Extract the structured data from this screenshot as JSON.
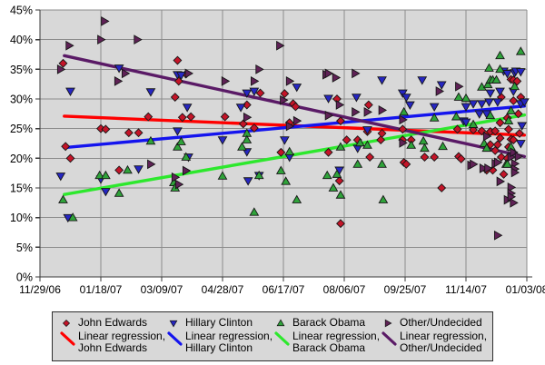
{
  "chart_data": {
    "type": "scatter",
    "title": "",
    "x_axis": {
      "tick_labels": [
        "11/29/06",
        "01/18/07",
        "03/09/07",
        "04/28/07",
        "06/17/07",
        "08/06/07",
        "09/25/07",
        "11/14/07",
        "01/03/08"
      ],
      "min_day": 0,
      "max_day": 400,
      "tick_step_days": 50
    },
    "y_axis": {
      "tick_labels": [
        "0%",
        "5%",
        "10%",
        "15%",
        "20%",
        "25%",
        "30%",
        "35%",
        "40%",
        "45%"
      ],
      "min": 0,
      "max": 45,
      "step": 5,
      "unit": "%"
    },
    "plot_bg": "#d8d8d8",
    "grid_color": "#8c8c8c",
    "axis_color": "#3a3a3a",
    "series": [
      {
        "name": "John Edwards",
        "marker": "diamond",
        "marker_color": "#c41428",
        "points": [
          [
            19,
            36
          ],
          [
            21,
            22
          ],
          [
            25,
            20
          ],
          [
            50,
            25
          ],
          [
            54,
            24.9
          ],
          [
            65,
            18
          ],
          [
            73,
            24.3
          ],
          [
            81,
            24.3
          ],
          [
            89,
            27
          ],
          [
            111,
            30.3
          ],
          [
            113,
            36.5
          ],
          [
            114,
            33
          ],
          [
            117,
            26.9
          ],
          [
            120,
            34.2
          ],
          [
            124,
            27
          ],
          [
            152,
            27
          ],
          [
            167,
            25.8
          ],
          [
            170,
            29
          ],
          [
            176,
            25.1
          ],
          [
            181,
            31
          ],
          [
            198,
            21
          ],
          [
            201,
            30.9
          ],
          [
            205,
            26
          ],
          [
            208,
            29.2
          ],
          [
            210,
            28.7
          ],
          [
            237,
            21
          ],
          [
            244,
            30
          ],
          [
            246,
            16.2
          ],
          [
            247,
            26.3
          ],
          [
            247,
            9
          ],
          [
            252,
            23.1
          ],
          [
            261,
            23.1
          ],
          [
            269,
            24.5
          ],
          [
            270,
            29
          ],
          [
            271,
            20.2
          ],
          [
            280,
            23.1
          ],
          [
            281,
            24.2
          ],
          [
            298,
            24.9
          ],
          [
            298,
            23.1
          ],
          [
            299,
            19.3
          ],
          [
            301,
            19
          ],
          [
            305,
            23.1
          ],
          [
            316,
            20.2
          ],
          [
            324,
            20.2
          ],
          [
            330,
            15
          ],
          [
            343,
            24.9
          ],
          [
            344,
            20.3
          ],
          [
            346,
            19.9
          ],
          [
            356,
            24.8
          ],
          [
            363,
            24.6
          ],
          [
            367,
            18
          ],
          [
            370,
            24.5
          ],
          [
            370,
            22.3
          ],
          [
            372,
            18
          ],
          [
            374,
            24.6
          ],
          [
            374,
            21.3
          ],
          [
            376,
            22.3
          ],
          [
            378,
            26
          ],
          [
            378,
            23.4
          ],
          [
            379,
            20.2
          ],
          [
            379,
            30.3
          ],
          [
            381,
            17.3
          ],
          [
            384,
            20
          ],
          [
            384,
            26.8
          ],
          [
            385,
            24.9
          ],
          [
            385,
            21.9
          ],
          [
            387,
            23.2
          ],
          [
            387,
            33.3
          ],
          [
            389,
            33.2
          ],
          [
            389,
            29.7
          ],
          [
            389,
            23.1
          ],
          [
            392,
            33
          ],
          [
            393,
            27.5
          ],
          [
            394,
            24.2
          ],
          [
            395,
            30.3
          ]
        ]
      },
      {
        "name": "Hillary Clinton",
        "marker": "triangle-down",
        "marker_color": "#2626c2",
        "points": [
          [
            17,
            17
          ],
          [
            23,
            10
          ],
          [
            25,
            31.3
          ],
          [
            50,
            16.5
          ],
          [
            54,
            14.4
          ],
          [
            65,
            35.2
          ],
          [
            81,
            18.2
          ],
          [
            91,
            31.2
          ],
          [
            113,
            34.1
          ],
          [
            116,
            34
          ],
          [
            113,
            24.6
          ],
          [
            121,
            28.6
          ],
          [
            122,
            20.2
          ],
          [
            150,
            23.1
          ],
          [
            165,
            28.6
          ],
          [
            170,
            31
          ],
          [
            170,
            21.1
          ],
          [
            171,
            16.2
          ],
          [
            176,
            31.3
          ],
          [
            180,
            17.1
          ],
          [
            201,
            23.1
          ],
          [
            205,
            20.2
          ],
          [
            211,
            32
          ],
          [
            237,
            30.1
          ],
          [
            246,
            18
          ],
          [
            260,
            30.3
          ],
          [
            261,
            21.7
          ],
          [
            269,
            24.8
          ],
          [
            281,
            33.2
          ],
          [
            298,
            31
          ],
          [
            301,
            30.3
          ],
          [
            304,
            29
          ],
          [
            314,
            33.2
          ],
          [
            324,
            28.7
          ],
          [
            330,
            32.4
          ],
          [
            348,
            26.3
          ],
          [
            350,
            28.7
          ],
          [
            350,
            26.1
          ],
          [
            356,
            29.2
          ],
          [
            361,
            27.5
          ],
          [
            363,
            29.2
          ],
          [
            367,
            27.5
          ],
          [
            369,
            29.5
          ],
          [
            370,
            31
          ],
          [
            376,
            29.5
          ],
          [
            378,
            31.3
          ],
          [
            381,
            34.7
          ],
          [
            384,
            34.3
          ],
          [
            389,
            31.3
          ],
          [
            390,
            34.4
          ],
          [
            391,
            34.7
          ],
          [
            395,
            34.6
          ],
          [
            395,
            29.2
          ],
          [
            395,
            22.5
          ],
          [
            396,
            25.5
          ],
          [
            398,
            29.5
          ]
        ]
      },
      {
        "name": "Barack Obama",
        "marker": "triangle-up",
        "marker_color": "#2fa33a",
        "points": [
          [
            19,
            13
          ],
          [
            27,
            10
          ],
          [
            49,
            17.1
          ],
          [
            54,
            17.1
          ],
          [
            65,
            14.1
          ],
          [
            72,
            18
          ],
          [
            91,
            22.9
          ],
          [
            110,
            15.9
          ],
          [
            111,
            15
          ],
          [
            113,
            21.9
          ],
          [
            116,
            22.8
          ],
          [
            120,
            20.2
          ],
          [
            150,
            17
          ],
          [
            166,
            21.9
          ],
          [
            170,
            24.2
          ],
          [
            170,
            23.1
          ],
          [
            176,
            10.9
          ],
          [
            180,
            17.1
          ],
          [
            198,
            17.9
          ],
          [
            202,
            16.1
          ],
          [
            205,
            21.1
          ],
          [
            211,
            13
          ],
          [
            236,
            17.1
          ],
          [
            241,
            15
          ],
          [
            244,
            17.3
          ],
          [
            247,
            21.9
          ],
          [
            247,
            13.8
          ],
          [
            261,
            19
          ],
          [
            263,
            22.6
          ],
          [
            269,
            22.2
          ],
          [
            281,
            19
          ],
          [
            282,
            13
          ],
          [
            299,
            27.8
          ],
          [
            305,
            22.2
          ],
          [
            315,
            22.9
          ],
          [
            316,
            21.7
          ],
          [
            324,
            26.8
          ],
          [
            331,
            22
          ],
          [
            342,
            27
          ],
          [
            344,
            30.3
          ],
          [
            350,
            30.1
          ],
          [
            356,
            25.7
          ],
          [
            363,
            32
          ],
          [
            365,
            22.5
          ],
          [
            367,
            21.7
          ],
          [
            368,
            32.4
          ],
          [
            369,
            35.2
          ],
          [
            370,
            33.2
          ],
          [
            370,
            27.2
          ],
          [
            372,
            33.2
          ],
          [
            375,
            33.2
          ],
          [
            378,
            37.3
          ],
          [
            378,
            35
          ],
          [
            383,
            19
          ],
          [
            384,
            19
          ],
          [
            385,
            26.3
          ],
          [
            387,
            28
          ],
          [
            387,
            21.9
          ],
          [
            390,
            32.1
          ],
          [
            395,
            38
          ]
        ]
      },
      {
        "name": "Other/Undecided",
        "marker": "triangle-right",
        "marker_color": "#5f2156",
        "points": [
          [
            17,
            35
          ],
          [
            24,
            39
          ],
          [
            50,
            40
          ],
          [
            53,
            43.1
          ],
          [
            64,
            33
          ],
          [
            70,
            34.3
          ],
          [
            80,
            40
          ],
          [
            91,
            19
          ],
          [
            111,
            16.8
          ],
          [
            114,
            15.6
          ],
          [
            120,
            17.9
          ],
          [
            122,
            34.3
          ],
          [
            152,
            33
          ],
          [
            170,
            26.9
          ],
          [
            176,
            33
          ],
          [
            180,
            35
          ],
          [
            197,
            39
          ],
          [
            200,
            29.8
          ],
          [
            205,
            33
          ],
          [
            205,
            25.4
          ],
          [
            211,
            26.3
          ],
          [
            235,
            34.1
          ],
          [
            237,
            34.3
          ],
          [
            237,
            27.2
          ],
          [
            243,
            33.6
          ],
          [
            246,
            29
          ],
          [
            259,
            34.3
          ],
          [
            259,
            27.8
          ],
          [
            269,
            27.8
          ],
          [
            281,
            28.1
          ],
          [
            298,
            26.5
          ],
          [
            298,
            22.6
          ],
          [
            328,
            31.3
          ],
          [
            344,
            32.1
          ],
          [
            354,
            18.8
          ],
          [
            356,
            19
          ],
          [
            364,
            18.3
          ],
          [
            367,
            23.7
          ],
          [
            368,
            18.3
          ],
          [
            374,
            19.1
          ],
          [
            376,
            19.3
          ],
          [
            376,
            7
          ],
          [
            378,
            16.1
          ],
          [
            384,
            13
          ],
          [
            387,
            20.2
          ],
          [
            387,
            15.1
          ],
          [
            387,
            14.1
          ],
          [
            387,
            13.5
          ],
          [
            389,
            21
          ],
          [
            389,
            12.5
          ],
          [
            390,
            19.1
          ],
          [
            390,
            18.2
          ],
          [
            390,
            17.6
          ],
          [
            393,
            20.3
          ]
        ]
      }
    ],
    "regressions": [
      {
        "name": "Linear regression, John Edwards",
        "color": "#ff0000",
        "start": [
          20,
          27.1
        ],
        "end": [
          398,
          23.9
        ]
      },
      {
        "name": "Linear regression, Hillary Clinton",
        "color": "#1414ee",
        "start": [
          20,
          21.8
        ],
        "end": [
          398,
          28.8
        ]
      },
      {
        "name": "Linear regression, Barack Obama",
        "color": "#2de82d",
        "start": [
          20,
          13.9
        ],
        "end": [
          398,
          27.3
        ]
      },
      {
        "name": "Linear regression, Other/Undecided",
        "color": "#5a1a66",
        "start": [
          20,
          37.3
        ],
        "end": [
          398,
          20.3
        ]
      }
    ]
  },
  "legend": {
    "columns": [
      {
        "label": "John Edwards",
        "reg_label_line1": "Linear regression,",
        "reg_label_line2": "John Edwards"
      },
      {
        "label": "Hillary Clinton",
        "reg_label_line1": "Linear regression,",
        "reg_label_line2": "Hillary Clinton"
      },
      {
        "label": "Barack Obama",
        "reg_label_line1": "Linear regression,",
        "reg_label_line2": "Barack Obama"
      },
      {
        "label": "Other/Undecided",
        "reg_label_line1": "Linear regression,",
        "reg_label_line2": "Other/Undecided"
      }
    ]
  }
}
